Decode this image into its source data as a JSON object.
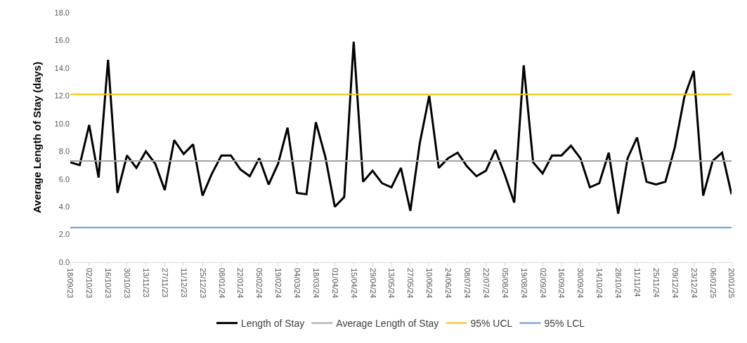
{
  "chart_data": {
    "type": "line",
    "ylabel": "Average Length of Stay (days)",
    "categories": [
      "18/09/23",
      null,
      "02/10/23",
      null,
      "16/10/23",
      null,
      "30/10/23",
      null,
      "13/11/23",
      null,
      "27/11/23",
      null,
      "11/12/23",
      null,
      "25/12/23",
      null,
      "08/01/24",
      null,
      "22/01/24",
      null,
      "05/02/24",
      null,
      "19/02/24",
      null,
      "04/03/24",
      null,
      "18/03/24",
      null,
      "01/04/24",
      null,
      "15/04/24",
      null,
      "29/04/24",
      null,
      "13/05/24",
      null,
      "27/05/24",
      null,
      "10/06/24",
      null,
      "24/06/24",
      null,
      "08/07/24",
      null,
      "22/07/24",
      null,
      "05/08/24",
      null,
      "19/08/24",
      null,
      "02/09/24",
      null,
      "16/09/24",
      null,
      "30/09/24",
      null,
      "14/10/24",
      null,
      "28/10/24",
      null,
      "11/11/24",
      null,
      "25/11/24",
      null,
      "09/12/24",
      null,
      "23/12/24",
      null,
      "06/01/25",
      null,
      "20/01/25"
    ],
    "series": [
      {
        "name": "Length of Stay",
        "color": "#000000",
        "values": [
          7.2,
          7.0,
          9.9,
          6.1,
          14.6,
          5.0,
          7.7,
          6.8,
          8.0,
          7.1,
          5.2,
          8.8,
          7.8,
          8.5,
          4.8,
          6.4,
          7.7,
          7.7,
          6.7,
          6.2,
          7.5,
          5.6,
          7.1,
          9.7,
          5.0,
          4.9,
          10.1,
          7.6,
          4.0,
          4.7,
          15.9,
          5.8,
          6.6,
          5.7,
          5.4,
          6.8,
          3.7,
          8.6,
          12.0,
          6.8,
          7.5,
          7.9,
          6.9,
          6.2,
          6.6,
          8.1,
          6.3,
          4.3,
          14.2,
          7.2,
          6.4,
          7.7,
          7.7,
          8.4,
          7.5,
          5.4,
          5.7,
          7.9,
          3.5,
          7.5,
          9.0,
          5.8,
          5.6,
          5.8,
          8.3,
          11.9,
          13.8,
          4.8,
          7.3,
          7.9,
          4.9
        ]
      }
    ],
    "ref_lines": [
      {
        "axis": "y",
        "value": 7.3,
        "label": "Average Length of Stay",
        "color": "#a5a5a5"
      },
      {
        "axis": "y",
        "value": 12.1,
        "label": "95% UCL",
        "color": "#ffc000"
      },
      {
        "axis": "y",
        "value": 2.5,
        "label": "95% LCL",
        "color": "#5b9bd5"
      }
    ],
    "ylim": [
      0,
      18
    ],
    "yticks": [
      {
        "value": 0,
        "label": "0.0"
      },
      {
        "value": 2,
        "label": "2.0"
      },
      {
        "value": 4,
        "label": "4.0"
      },
      {
        "value": 6,
        "label": "6.0"
      },
      {
        "value": 8,
        "label": "8.0"
      },
      {
        "value": 10,
        "label": "10.0"
      },
      {
        "value": 12,
        "label": "12.0"
      },
      {
        "value": 14,
        "label": "14.0"
      },
      {
        "value": 16,
        "label": "16.0"
      },
      {
        "value": 18,
        "label": "18.0"
      }
    ],
    "legend": "bottom",
    "marker": "none",
    "line_style": "solid"
  }
}
